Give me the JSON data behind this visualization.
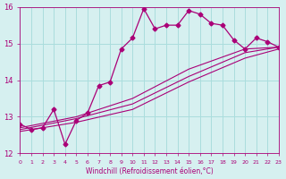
{
  "xlabel": "Windchill (Refroidissement éolien,°C)",
  "ylabel": "",
  "bg_color": "#d6f0f0",
  "line_color": "#aa0077",
  "grid_color": "#aadddd",
  "xlim": [
    0,
    23
  ],
  "ylim": [
    12,
    16
  ],
  "xticks": [
    0,
    1,
    2,
    3,
    4,
    5,
    6,
    7,
    8,
    9,
    10,
    11,
    12,
    13,
    14,
    15,
    16,
    17,
    18,
    19,
    20,
    21,
    22,
    23
  ],
  "yticks": [
    12,
    13,
    14,
    15,
    16
  ],
  "series1_x": [
    0,
    1,
    2,
    3,
    4,
    5,
    6,
    7,
    8,
    9,
    10,
    11,
    12,
    13,
    14,
    15,
    16,
    17,
    18,
    19,
    20,
    21,
    22,
    23
  ],
  "series1_y": [
    12.8,
    12.65,
    12.7,
    13.2,
    12.25,
    12.9,
    13.1,
    13.85,
    13.95,
    14.85,
    15.15,
    15.95,
    15.4,
    15.5,
    15.5,
    15.9,
    15.8,
    15.55,
    15.5,
    15.1,
    14.85,
    15.15,
    15.05,
    14.9
  ],
  "series2_x": [
    0,
    5,
    10,
    15,
    20,
    23
  ],
  "series2_y": [
    12.7,
    13.0,
    13.5,
    14.3,
    14.85,
    14.9
  ],
  "series3_x": [
    0,
    5,
    10,
    15,
    20,
    23
  ],
  "series3_y": [
    12.65,
    12.95,
    13.35,
    14.1,
    14.75,
    14.9
  ],
  "series4_x": [
    0,
    5,
    10,
    15,
    20,
    23
  ],
  "series4_y": [
    12.6,
    12.85,
    13.2,
    13.95,
    14.6,
    14.85
  ]
}
